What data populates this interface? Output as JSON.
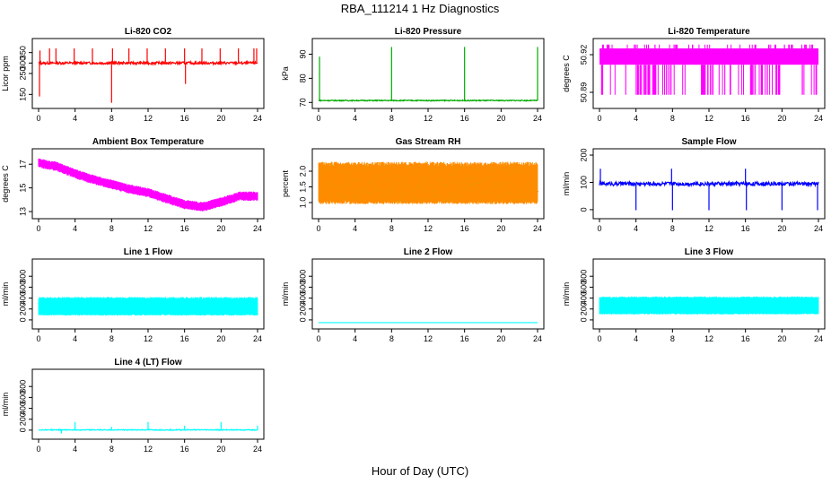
{
  "figure": {
    "title": "RBA_111214  1 Hz Diagnostics",
    "xlabel": "Hour of Day (UTC)"
  },
  "chart_data": [
    {
      "id": "co2",
      "type": "line",
      "title": "Li-820 CO2",
      "ylabel": "Licor ppm",
      "color": "#ff0000",
      "xlim": [
        0,
        24
      ],
      "ylim": [
        100,
        400
      ],
      "x_ticks": [
        "0",
        "4",
        "8",
        "12",
        "16",
        "20",
        "24"
      ],
      "y_ticks": [
        {
          "v": 150,
          "label": "150"
        },
        {
          "v": 250,
          "label": "250"
        },
        {
          "v": 300,
          "label": "300"
        },
        {
          "v": 350,
          "label": "350"
        }
      ],
      "pattern": "baseline",
      "baseline": 300,
      "noise": 6,
      "spikes": [
        {
          "x": 0.1,
          "y": 140
        },
        {
          "x": 0.15,
          "y": 360
        },
        {
          "x": 1.2,
          "y": 370
        },
        {
          "x": 1.9,
          "y": 370
        },
        {
          "x": 3.9,
          "y": 370
        },
        {
          "x": 5.9,
          "y": 370
        },
        {
          "x": 8.0,
          "y": 110
        },
        {
          "x": 8.1,
          "y": 370
        },
        {
          "x": 9.9,
          "y": 370
        },
        {
          "x": 11.9,
          "y": 370
        },
        {
          "x": 13.9,
          "y": 370
        },
        {
          "x": 16.0,
          "y": 370
        },
        {
          "x": 16.1,
          "y": 200
        },
        {
          "x": 17.9,
          "y": 370
        },
        {
          "x": 19.9,
          "y": 370
        },
        {
          "x": 21.9,
          "y": 370
        },
        {
          "x": 23.6,
          "y": 370
        },
        {
          "x": 23.9,
          "y": 370
        }
      ]
    },
    {
      "id": "pressure",
      "type": "line",
      "title": "Li-820 Pressure",
      "ylabel": "kPa",
      "color": "#00aa00",
      "xlim": [
        0,
        24
      ],
      "ylim": [
        69,
        95
      ],
      "x_ticks": [
        "0",
        "4",
        "8",
        "12",
        "16",
        "20",
        "24"
      ],
      "y_ticks": [
        {
          "v": 70,
          "label": "70"
        },
        {
          "v": 80,
          "label": "80"
        },
        {
          "v": 90,
          "label": "90"
        }
      ],
      "pattern": "baseline",
      "baseline": 70.8,
      "noise": 0.2,
      "spikes": [
        {
          "x": 0.1,
          "y": 89
        },
        {
          "x": 8.0,
          "y": 93
        },
        {
          "x": 16.0,
          "y": 93
        },
        {
          "x": 24.0,
          "y": 93
        }
      ]
    },
    {
      "id": "temperature",
      "type": "line",
      "title": "Li-820 Temperature",
      "ylabel": "degrees C",
      "color": "#ff00ff",
      "xlim": [
        0,
        24
      ],
      "ylim": [
        50.88,
        50.93
      ],
      "x_ticks": [
        "0",
        "4",
        "8",
        "12",
        "16",
        "20",
        "24"
      ],
      "y_ticks": [
        {
          "v": 50.89,
          "label": "50.89"
        },
        {
          "v": 50.92,
          "label": "50.92"
        }
      ],
      "pattern": "digital",
      "high": 50.925,
      "mid": 50.912,
      "low": 50.888
    },
    {
      "id": "ambient",
      "type": "line",
      "title": "Ambient Box Temperature",
      "ylabel": "degrees C",
      "color": "#ff00ff",
      "xlim": [
        0,
        24
      ],
      "ylim": [
        12.7,
        18.0
      ],
      "x_ticks": [
        "0",
        "4",
        "8",
        "12",
        "16",
        "20",
        "24"
      ],
      "y_ticks": [
        {
          "v": 13,
          "label": "13"
        },
        {
          "v": 15,
          "label": "15"
        },
        {
          "v": 17,
          "label": "17"
        }
      ],
      "pattern": "band",
      "curve": [
        {
          "x": 0,
          "y": 17.1
        },
        {
          "x": 2,
          "y": 16.8
        },
        {
          "x": 4,
          "y": 16.2
        },
        {
          "x": 6,
          "y": 15.7
        },
        {
          "x": 8,
          "y": 15.3
        },
        {
          "x": 10,
          "y": 14.9
        },
        {
          "x": 12,
          "y": 14.6
        },
        {
          "x": 14,
          "y": 14.1
        },
        {
          "x": 16,
          "y": 13.6
        },
        {
          "x": 18,
          "y": 13.4
        },
        {
          "x": 20,
          "y": 13.8
        },
        {
          "x": 22,
          "y": 14.3
        },
        {
          "x": 24,
          "y": 14.3
        }
      ],
      "halfwidth": 0.4
    },
    {
      "id": "rh",
      "type": "line",
      "title": "Gas Stream RH",
      "ylabel": "percent",
      "color": "#ff8c00",
      "color2": "#d4a000",
      "xlim": [
        0,
        24
      ],
      "ylim": [
        0.6,
        2.6
      ],
      "x_ticks": [
        "0",
        "4",
        "8",
        "12",
        "16",
        "20",
        "24"
      ],
      "y_ticks": [
        {
          "v": 1.0,
          "label": "1.0"
        },
        {
          "v": 1.5,
          "label": "1.5"
        },
        {
          "v": 2.0,
          "label": "2.0"
        }
      ],
      "pattern": "block",
      "low": 0.95,
      "high": 2.3
    },
    {
      "id": "sample",
      "type": "line",
      "title": "Sample Flow",
      "ylabel": "ml/min",
      "color": "#0000ff",
      "xlim": [
        0,
        24
      ],
      "ylim": [
        -20,
        210
      ],
      "x_ticks": [
        "0",
        "4",
        "8",
        "12",
        "16",
        "20",
        "24"
      ],
      "y_ticks": [
        {
          "v": 0,
          "label": "0"
        },
        {
          "v": 100,
          "label": "100"
        },
        {
          "v": 200,
          "label": "200"
        }
      ],
      "pattern": "baseline",
      "baseline": 95,
      "noise": 7,
      "spikes": [
        {
          "x": 0.1,
          "y": 150
        },
        {
          "x": 4.0,
          "y": -2
        },
        {
          "x": 7.9,
          "y": 150
        },
        {
          "x": 8.0,
          "y": -2
        },
        {
          "x": 12.0,
          "y": -2
        },
        {
          "x": 16.0,
          "y": 150
        },
        {
          "x": 16.1,
          "y": -2
        },
        {
          "x": 20.0,
          "y": -2
        },
        {
          "x": 23.9,
          "y": -2
        }
      ]
    },
    {
      "id": "line1",
      "type": "line",
      "title": "Line 1 Flow",
      "ylabel": "ml/min",
      "color": "#00ffff",
      "xlim": [
        0,
        24
      ],
      "ylim": [
        -100,
        1050
      ],
      "x_ticks": [
        "0",
        "4",
        "8",
        "12",
        "16",
        "20",
        "24"
      ],
      "y_ticks": [
        {
          "v": 0,
          "label": "0"
        },
        {
          "v": 200,
          "label": "200"
        },
        {
          "v": 400,
          "label": "400"
        },
        {
          "v": 600,
          "label": "600"
        },
        {
          "v": 800,
          "label": "800"
        }
      ],
      "pattern": "block",
      "low": 80,
      "high": 420
    },
    {
      "id": "line2",
      "type": "line",
      "title": "Line 2 Flow",
      "ylabel": "ml/min",
      "color": "#00ffff",
      "xlim": [
        0,
        24
      ],
      "ylim": [
        -100,
        1050
      ],
      "x_ticks": [
        "0",
        "4",
        "8",
        "12",
        "16",
        "20",
        "24"
      ],
      "y_ticks": [
        {
          "v": 0,
          "label": "0"
        },
        {
          "v": 200,
          "label": "200"
        },
        {
          "v": 400,
          "label": "400"
        },
        {
          "v": 600,
          "label": "600"
        },
        {
          "v": 800,
          "label": "800"
        }
      ],
      "pattern": "flat",
      "value": -50
    },
    {
      "id": "line3",
      "type": "line",
      "title": "Line 3 Flow",
      "ylabel": "ml/min",
      "color": "#00ffff",
      "xlim": [
        0,
        24
      ],
      "ylim": [
        -100,
        1050
      ],
      "x_ticks": [
        "0",
        "4",
        "8",
        "12",
        "16",
        "20",
        "24"
      ],
      "y_ticks": [
        {
          "v": 0,
          "label": "0"
        },
        {
          "v": 200,
          "label": "200"
        },
        {
          "v": 400,
          "label": "400"
        },
        {
          "v": 600,
          "label": "600"
        },
        {
          "v": 800,
          "label": "800"
        }
      ],
      "pattern": "block",
      "low": 100,
      "high": 430
    },
    {
      "id": "line4",
      "type": "line",
      "title": "Line 4 (LT) Flow",
      "ylabel": "ml/min",
      "color": "#00ffff",
      "xlim": [
        0,
        24
      ],
      "ylim": [
        -100,
        1050
      ],
      "x_ticks": [
        "0",
        "4",
        "8",
        "12",
        "16",
        "20",
        "24"
      ],
      "y_ticks": [
        {
          "v": 0,
          "label": "0"
        },
        {
          "v": 200,
          "label": "200"
        },
        {
          "v": 400,
          "label": "400"
        },
        {
          "v": 600,
          "label": "600"
        },
        {
          "v": 800,
          "label": "800"
        }
      ],
      "pattern": "baseline",
      "baseline": 5,
      "noise": 8,
      "spikes": [
        {
          "x": 2.5,
          "y": -60
        },
        {
          "x": 4.0,
          "y": 150
        },
        {
          "x": 8.0,
          "y": 60
        },
        {
          "x": 12.0,
          "y": 150
        },
        {
          "x": 16.0,
          "y": 80
        },
        {
          "x": 20.0,
          "y": 150
        },
        {
          "x": 24.0,
          "y": 80
        }
      ]
    }
  ]
}
